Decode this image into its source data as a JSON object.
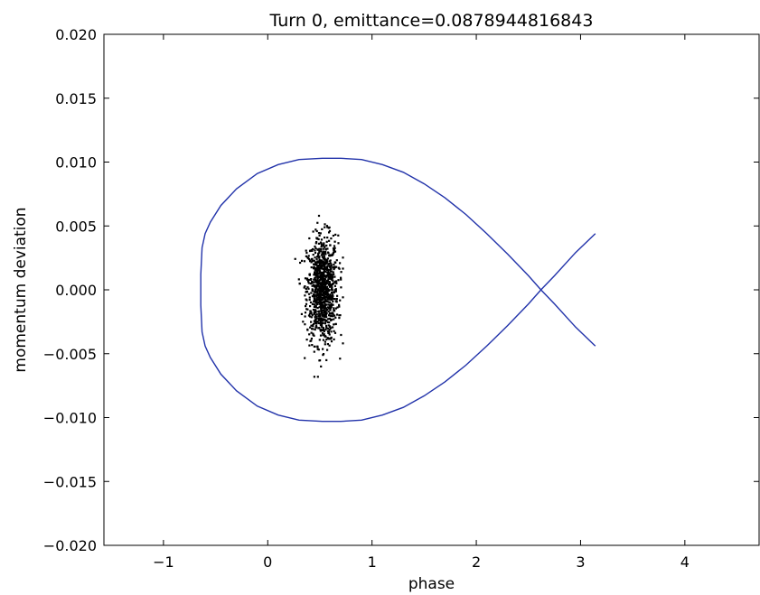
{
  "chart_data": {
    "type": "scatter",
    "title": "Turn 0, emittance=0.0878944816843",
    "xlabel": "phase",
    "ylabel": "momentum deviation",
    "xlim": [
      -1.571,
      4.712
    ],
    "ylim": [
      -0.02,
      0.02
    ],
    "x_ticks": [
      -1,
      0,
      1,
      2,
      3,
      4
    ],
    "x_tick_labels": [
      "−1",
      "0",
      "1",
      "2",
      "3",
      "4"
    ],
    "y_ticks": [
      -0.02,
      -0.015,
      -0.01,
      -0.005,
      0.0,
      0.005,
      0.01,
      0.015,
      0.02
    ],
    "y_tick_labels": [
      "−0.020",
      "−0.015",
      "−0.010",
      "−0.005",
      "0.000",
      "0.005",
      "0.010",
      "0.015",
      "0.020"
    ],
    "grid": false,
    "colors": {
      "separatrix": "#2233aa",
      "particles": "#000000"
    },
    "series": [
      {
        "kind": "line",
        "x": [
          3.1416,
          2.95,
          2.75,
          2.62,
          2.5,
          2.3,
          2.1,
          1.9,
          1.7,
          1.5,
          1.3,
          1.1,
          0.9,
          0.7,
          0.5236,
          0.3,
          0.1,
          -0.1,
          -0.3,
          -0.45,
          -0.55,
          -0.6,
          -0.63,
          -0.6416,
          -0.6416,
          -0.63,
          -0.6,
          -0.55,
          -0.45,
          -0.3,
          -0.1,
          0.1,
          0.3,
          0.5236,
          0.7,
          0.9,
          1.1,
          1.3,
          1.5,
          1.7,
          1.9,
          2.1,
          2.3,
          2.5,
          2.62,
          2.75,
          2.95,
          3.1416
        ],
        "y": [
          -0.0044,
          -0.0029,
          -0.0011,
          0.0,
          0.0011,
          0.0028,
          0.0044,
          0.0059,
          0.0072,
          0.0083,
          0.0092,
          0.0098,
          0.0102,
          0.0103,
          0.0103,
          0.0102,
          0.0098,
          0.0091,
          0.0079,
          0.0066,
          0.0053,
          0.0044,
          0.0033,
          0.0012,
          -0.0012,
          -0.0033,
          -0.0044,
          -0.0053,
          -0.0066,
          -0.0079,
          -0.0091,
          -0.0098,
          -0.0102,
          -0.0103,
          -0.0103,
          -0.0102,
          -0.0098,
          -0.0092,
          -0.0083,
          -0.0072,
          -0.0059,
          -0.0044,
          -0.0028,
          -0.0011,
          0.0,
          0.0011,
          0.0029,
          0.0044
        ]
      },
      {
        "kind": "scatter",
        "count": 1000,
        "x_mean": 0.5236,
        "x_std": 0.075,
        "y_mean": 0.0,
        "y_std": 0.0021,
        "x_range": [
          0.24,
          0.72
        ],
        "y_range": [
          -0.0068,
          0.0058
        ]
      }
    ]
  }
}
